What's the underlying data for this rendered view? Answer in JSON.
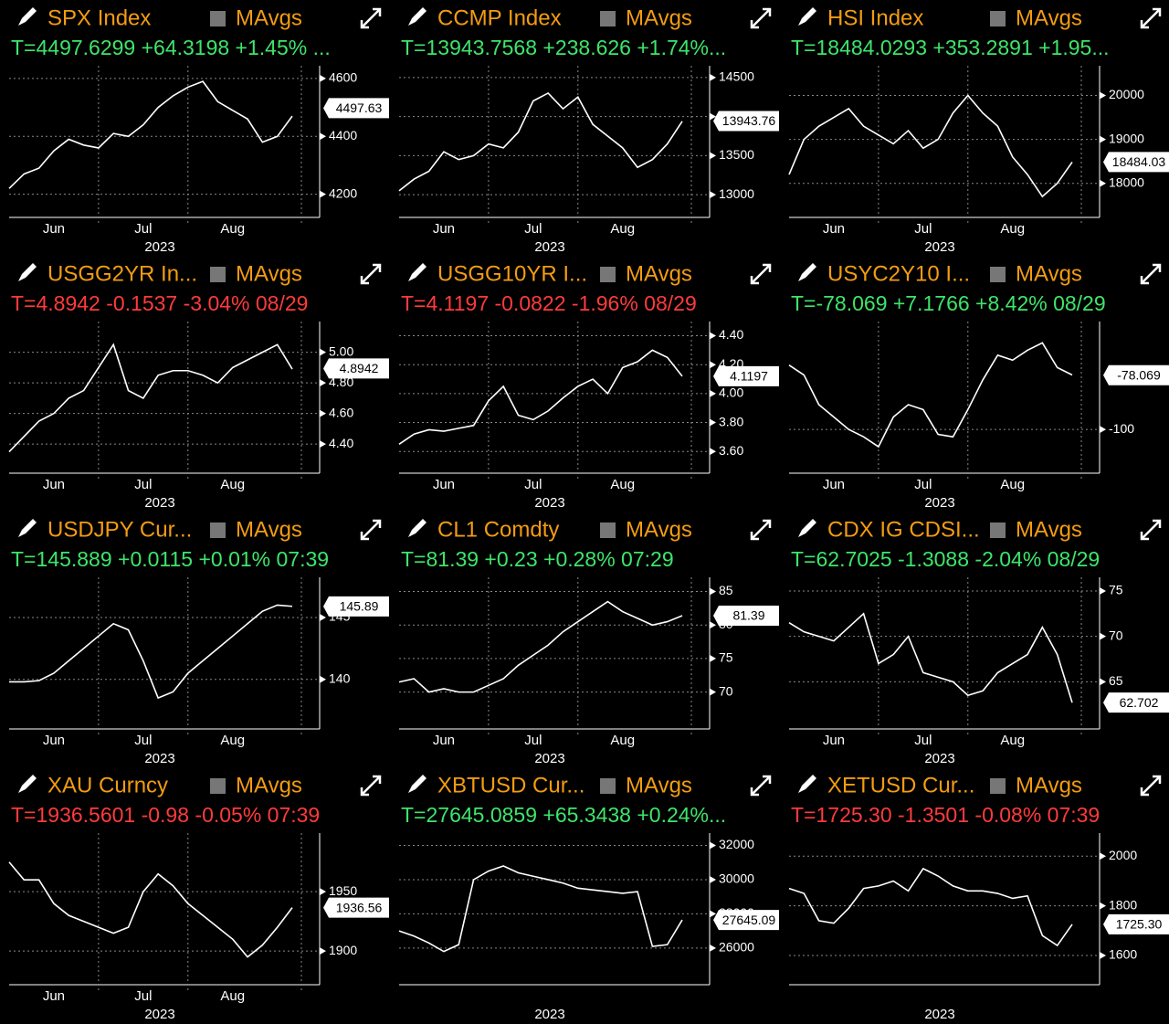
{
  "chart_data": [
    {
      "type": "line",
      "title": "SPX Index",
      "legend": "MAvgs",
      "quote": "T=4497.6299 +64.3198 +1.45% ...",
      "quote_color": "#3ee56a",
      "categories": [
        null,
        null,
        null,
        "Jun",
        null,
        null,
        null,
        null,
        null,
        "Jul",
        null,
        null,
        null,
        null,
        null,
        "Aug",
        null,
        null,
        null,
        null
      ],
      "x_label": "2023",
      "values": [
        4220,
        4270,
        4290,
        4350,
        4390,
        4370,
        4360,
        4410,
        4400,
        4440,
        4500,
        4540,
        4570,
        4590,
        4520,
        4490,
        4460,
        4380,
        4400,
        4470
      ],
      "ylim": [
        4120,
        4625
      ],
      "yticks": [
        4200,
        4400,
        4600
      ],
      "last": 4497.63,
      "grid": true,
      "color": "#ffffff"
    },
    {
      "type": "line",
      "title": "CCMP Index",
      "legend": "MAvgs",
      "quote": "T=13943.7568 +238.626 +1.74%...",
      "quote_color": "#3ee56a",
      "categories": [
        null,
        null,
        null,
        "Jun",
        null,
        null,
        null,
        null,
        null,
        "Jul",
        null,
        null,
        null,
        null,
        null,
        "Aug",
        null,
        null,
        null,
        null
      ],
      "x_label": "2023",
      "values": [
        13050,
        13200,
        13300,
        13550,
        13450,
        13500,
        13650,
        13600,
        13800,
        14200,
        14300,
        14100,
        14250,
        13900,
        13750,
        13600,
        13350,
        13450,
        13650,
        13940
      ],
      "ylim": [
        12710,
        14580
      ],
      "yticks": [
        13000,
        13500,
        14000,
        14500
      ],
      "last": 13943.76,
      "grid": true,
      "color": "#ffffff"
    },
    {
      "type": "line",
      "title": "HSI Index",
      "legend": "MAvgs",
      "quote": "T=18484.0293 +353.2891 +1.95...",
      "quote_color": "#3ee56a",
      "categories": [
        null,
        null,
        null,
        "Jun",
        null,
        null,
        null,
        null,
        null,
        "Jul",
        null,
        null,
        null,
        null,
        null,
        "Aug",
        null,
        null,
        null,
        null
      ],
      "x_label": "2023",
      "values": [
        18200,
        19000,
        19300,
        19500,
        19700,
        19300,
        19100,
        18900,
        19200,
        18800,
        19000,
        19600,
        20000,
        19600,
        19300,
        18600,
        18200,
        17700,
        18000,
        18484
      ],
      "ylim": [
        17225,
        20550
      ],
      "yticks": [
        18000,
        19000,
        20000
      ],
      "last": 18484.03,
      "grid": true,
      "color": "#ffffff"
    },
    {
      "type": "line",
      "title": "USGG2YR In...",
      "legend": "MAvgs",
      "quote": "T=4.8942 -0.1537 -3.04% 08/29",
      "quote_color": "#ff3b3b",
      "categories": [
        null,
        null,
        null,
        "Jun",
        null,
        null,
        null,
        null,
        null,
        "Jul",
        null,
        null,
        null,
        null,
        null,
        "Aug",
        null,
        null,
        null,
        null
      ],
      "x_label": "2023",
      "values": [
        4.35,
        4.45,
        4.55,
        4.6,
        4.7,
        4.75,
        4.9,
        5.05,
        4.75,
        4.7,
        4.85,
        4.88,
        4.88,
        4.85,
        4.8,
        4.9,
        4.95,
        5.0,
        5.05,
        4.89
      ],
      "ylim": [
        4.21,
        5.165
      ],
      "yticks": [
        {
          "value": 4.4,
          "label": "4.40"
        },
        {
          "value": 4.6,
          "label": "4.60"
        },
        {
          "value": 4.8,
          "label": "4.80"
        },
        {
          "value": 5,
          "label": "5.00"
        }
      ],
      "last": 4.8942,
      "grid": true,
      "color": "#ffffff"
    },
    {
      "type": "line",
      "title": "USGG10YR I...",
      "legend": "MAvgs",
      "quote": "T=4.1197 -0.0822 -1.96% 08/29",
      "quote_color": "#ff3b3b",
      "categories": [
        null,
        null,
        null,
        "Jun",
        null,
        null,
        null,
        null,
        null,
        "Jul",
        null,
        null,
        null,
        null,
        null,
        "Aug",
        null,
        null,
        null,
        null
      ],
      "x_label": "2023",
      "values": [
        3.65,
        3.72,
        3.75,
        3.74,
        3.76,
        3.78,
        3.95,
        4.05,
        3.85,
        3.82,
        3.88,
        3.97,
        4.05,
        4.1,
        4.0,
        4.18,
        4.22,
        4.3,
        4.25,
        4.12
      ],
      "ylim": [
        3.45,
        4.46
      ],
      "yticks": [
        {
          "value": 3.6,
          "label": "3.60"
        },
        {
          "value": 3.8,
          "label": "3.80"
        },
        {
          "value": 4,
          "label": "4.00"
        },
        {
          "value": 4.2,
          "label": "4.20"
        },
        {
          "value": 4.4,
          "label": "4.40"
        }
      ],
      "last": 4.1197,
      "grid": true,
      "color": "#ffffff"
    },
    {
      "type": "line",
      "title": "USYC2Y10 I...",
      "legend": "MAvgs",
      "quote": "T=-78.069 +7.1766 +8.42% 08/29",
      "quote_color": "#3ee56a",
      "categories": [
        null,
        null,
        null,
        "Jun",
        null,
        null,
        null,
        null,
        null,
        "Jul",
        null,
        null,
        null,
        null,
        null,
        "Aug",
        null,
        null,
        null,
        null
      ],
      "x_label": "2023",
      "values": [
        -74,
        -78,
        -90,
        -95,
        -100,
        -103,
        -107,
        -95,
        -90,
        -92,
        -102,
        -103,
        -92,
        -80,
        -70,
        -72,
        -68,
        -65,
        -75,
        -78
      ],
      "ylim": [
        -117.7,
        -58.6
      ],
      "yticks": [
        -100
      ],
      "last": -78.069,
      "grid": true,
      "color": "#ffffff"
    },
    {
      "type": "line",
      "title": "USDJPY Cur...",
      "legend": "MAvgs",
      "quote": "T=145.889 +0.0115 +0.01% 07:39",
      "quote_color": "#3ee56a",
      "categories": [
        null,
        null,
        null,
        "Jun",
        null,
        null,
        null,
        null,
        null,
        "Jul",
        null,
        null,
        null,
        null,
        null,
        "Aug",
        null,
        null,
        null,
        null
      ],
      "x_label": "2023",
      "values": [
        139.8,
        139.8,
        139.9,
        140.5,
        141.5,
        142.5,
        143.5,
        144.5,
        144,
        141.5,
        138.5,
        139,
        140.5,
        141.5,
        142.5,
        143.5,
        144.5,
        145.5,
        146,
        145.9
      ],
      "ylim": [
        136,
        147.8
      ],
      "yticks": [
        140,
        145
      ],
      "last": 145.89,
      "grid": true,
      "color": "#ffffff"
    },
    {
      "type": "line",
      "title": "CL1 Comdty",
      "legend": "MAvgs",
      "quote": "T=81.39 +0.23 +0.28% 07:29",
      "quote_color": "#3ee56a",
      "categories": [
        null,
        null,
        null,
        "Jun",
        null,
        null,
        null,
        null,
        null,
        "Jul",
        null,
        null,
        null,
        null,
        null,
        "Aug",
        null,
        null,
        null,
        null
      ],
      "x_label": "2023",
      "values": [
        71.5,
        72,
        70,
        70.5,
        70,
        70,
        71,
        72,
        74,
        75.5,
        77,
        79,
        80.5,
        82,
        83.5,
        82,
        81,
        80,
        80.5,
        81.39
      ],
      "ylim": [
        64.5,
        86.3
      ],
      "yticks": [
        70,
        75,
        80,
        85
      ],
      "last": 81.39,
      "grid": true,
      "color": "#ffffff"
    },
    {
      "type": "line",
      "title": "CDX IG CDSI...",
      "legend": "MAvgs",
      "quote": "T=62.7025 -1.3088 -2.04% 08/29",
      "quote_color": "#3ee56a",
      "categories": [
        null,
        null,
        null,
        "Jun",
        null,
        null,
        null,
        null,
        null,
        "Jul",
        null,
        null,
        null,
        null,
        null,
        "Aug",
        null,
        null,
        null,
        null
      ],
      "x_label": "2023",
      "values": [
        71.5,
        70.5,
        70,
        69.5,
        71,
        72.5,
        67,
        68,
        70,
        66,
        65.5,
        65,
        63.5,
        64,
        66,
        67,
        68,
        71,
        68,
        62.7
      ],
      "ylim": [
        59.8,
        75.9
      ],
      "yticks": [
        65,
        70,
        75
      ],
      "last": 62.702,
      "grid": true,
      "color": "#ffffff"
    },
    {
      "type": "line",
      "title": "XAU Curncy",
      "legend": "MAvgs",
      "quote": "T=1936.5601 -0.98 -0.05% 07:39",
      "quote_color": "#ff3b3b",
      "categories": [
        null,
        null,
        null,
        "Jun",
        null,
        null,
        null,
        null,
        null,
        "Jul",
        null,
        null,
        null,
        null,
        null,
        "Aug",
        null,
        null,
        null,
        null
      ],
      "x_label": "2023",
      "values": [
        1975,
        1960,
        1960,
        1940,
        1930,
        1925,
        1920,
        1915,
        1920,
        1950,
        1965,
        1955,
        1940,
        1930,
        1920,
        1910,
        1895,
        1905,
        1920,
        1936.56
      ],
      "ylim": [
        1871.6,
        1994.8
      ],
      "yticks": [
        1900,
        1950
      ],
      "last": 1936.56,
      "grid": true,
      "color": "#ffffff"
    },
    {
      "type": "line",
      "title": "XBTUSD Cur...",
      "legend": "MAvgs",
      "quote": "T=27645.0859 +65.3438 +0.24%...",
      "quote_color": "#3ee56a",
      "categories": [
        null,
        null,
        null,
        null,
        null,
        null,
        null,
        null,
        null,
        null,
        null,
        null,
        null,
        null,
        null,
        null,
        null,
        null,
        null,
        null
      ],
      "x_label": "2023",
      "values": [
        27000,
        26700,
        26300,
        25800,
        26200,
        30000,
        30500,
        30800,
        30400,
        30200,
        30000,
        29800,
        29500,
        29400,
        29300,
        29200,
        29300,
        26100,
        26200,
        27645.09
      ],
      "ylim": [
        23860,
        32400
      ],
      "yticks": [
        26000,
        28000,
        30000,
        32000
      ],
      "last": 27645.09,
      "grid": true,
      "color": "#ffffff"
    },
    {
      "type": "line",
      "title": "XETUSD Cur...",
      "legend": "MAvgs",
      "quote": "T=1725.30 -1.3501 -0.08% 07:39",
      "quote_color": "#ff3b3b",
      "categories": [
        null,
        null,
        null,
        null,
        null,
        null,
        null,
        null,
        null,
        null,
        null,
        null,
        null,
        null,
        null,
        null,
        null,
        null,
        null,
        null
      ],
      "x_label": "2023",
      "values": [
        1870,
        1850,
        1740,
        1730,
        1790,
        1870,
        1880,
        1900,
        1860,
        1950,
        1920,
        1880,
        1860,
        1860,
        1850,
        1830,
        1840,
        1680,
        1640,
        1725.3
      ],
      "ylim": [
        1482,
        2071
      ],
      "yticks": [
        1600,
        1800,
        2000
      ],
      "last": {
        "value": 1725.3,
        "label": "1725.30"
      },
      "grid": true,
      "color": "#ffffff"
    }
  ]
}
